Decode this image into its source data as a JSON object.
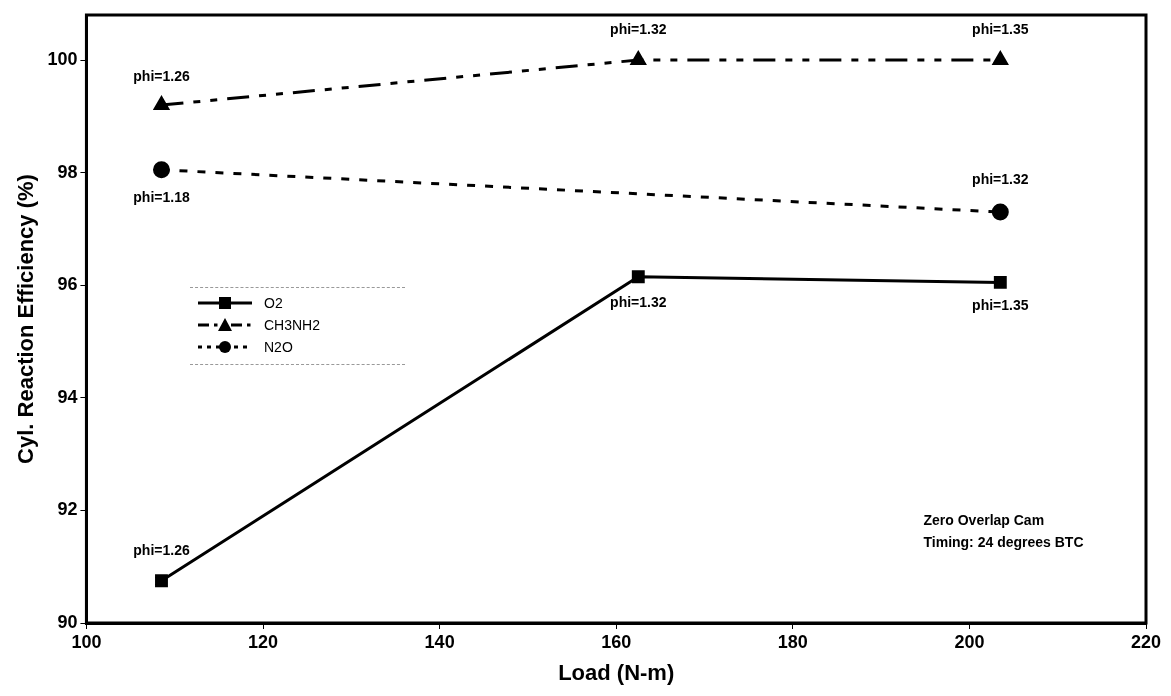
{
  "chart_data": {
    "type": "line",
    "xlabel": "Load (N-m)",
    "ylabel": "Cyl. Reaction Efficiency (%)",
    "x": [
      108.5,
      162.5,
      203.5
    ],
    "xlim": [
      100,
      220
    ],
    "xticks": [
      100,
      120,
      140,
      160,
      180,
      200,
      220
    ],
    "ylim": [
      90,
      100.8
    ],
    "yticks": [
      90,
      92,
      94,
      96,
      98,
      100
    ],
    "grid": false,
    "legend": "left",
    "series": [
      {
        "name": "O2",
        "color": "#000000",
        "values": [
          90.75,
          96.15,
          96.05
        ],
        "marker": "square",
        "line_style": "solid"
      },
      {
        "name": "CH3NH2",
        "color": "#000000",
        "values": [
          99.2,
          100,
          100
        ],
        "marker": "triangle",
        "line_style": "dashed"
      },
      {
        "name": "N2O",
        "color": "#000000",
        "x": [
          108.5,
          203.5
        ],
        "values": [
          98.05,
          97.3
        ],
        "marker": "circle",
        "line_style": "dotted"
      }
    ],
    "annotations": [
      {
        "text": "phi=1.26",
        "x": 108.5,
        "y": 99.2
      },
      {
        "text": "phi=1.32",
        "x": 162.5,
        "y": 100
      },
      {
        "text": "phi=1.35",
        "x": 203.5,
        "y": 100
      },
      {
        "text": "phi=1.18",
        "x": 108.5,
        "y": 98.05
      },
      {
        "text": "phi=1.32",
        "x": 203.5,
        "y": 97.3
      },
      {
        "text": "phi=1.26",
        "x": 108.5,
        "y": 90.75
      },
      {
        "text": "phi=1.32",
        "x": 162.5,
        "y": 96.15
      },
      {
        "text": "phi=1.35",
        "x": 203.5,
        "y": 96.05
      },
      "Zero Overlap Cam\nTiming: 24 degrees BTC"
    ]
  }
}
